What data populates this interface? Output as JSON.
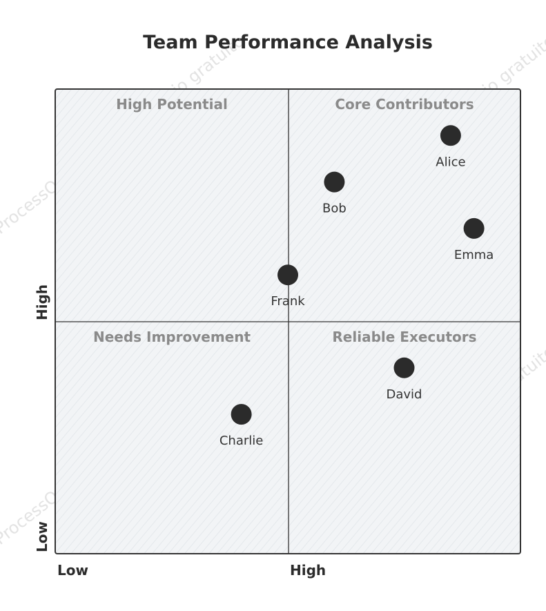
{
  "chart_data": {
    "type": "scatter",
    "title": "Team Performance Analysis",
    "quadrants": {
      "top_left": "High Potential",
      "top_right": "Core Contributors",
      "bottom_left": "Needs Improvement",
      "bottom_right": "Reliable Executors"
    },
    "x_axis": {
      "low": "Low",
      "high": "High"
    },
    "y_axis": {
      "low": "Low",
      "high": "High"
    },
    "xlim": [
      0,
      1
    ],
    "ylim": [
      0,
      1
    ],
    "points": [
      {
        "label": "Alice",
        "x": 0.85,
        "y": 0.9
      },
      {
        "label": "Bob",
        "x": 0.6,
        "y": 0.8
      },
      {
        "label": "Emma",
        "x": 0.9,
        "y": 0.7
      },
      {
        "label": "Frank",
        "x": 0.5,
        "y": 0.6
      },
      {
        "label": "David",
        "x": 0.75,
        "y": 0.4
      },
      {
        "label": "Charlie",
        "x": 0.4,
        "y": 0.3
      }
    ],
    "colors": {
      "point": "#2b2b2b",
      "quadrant_fill": "#f1f3f5",
      "border": "#333333"
    }
  },
  "watermark": "ProcessOn:Diagrama de flujo gratuito"
}
